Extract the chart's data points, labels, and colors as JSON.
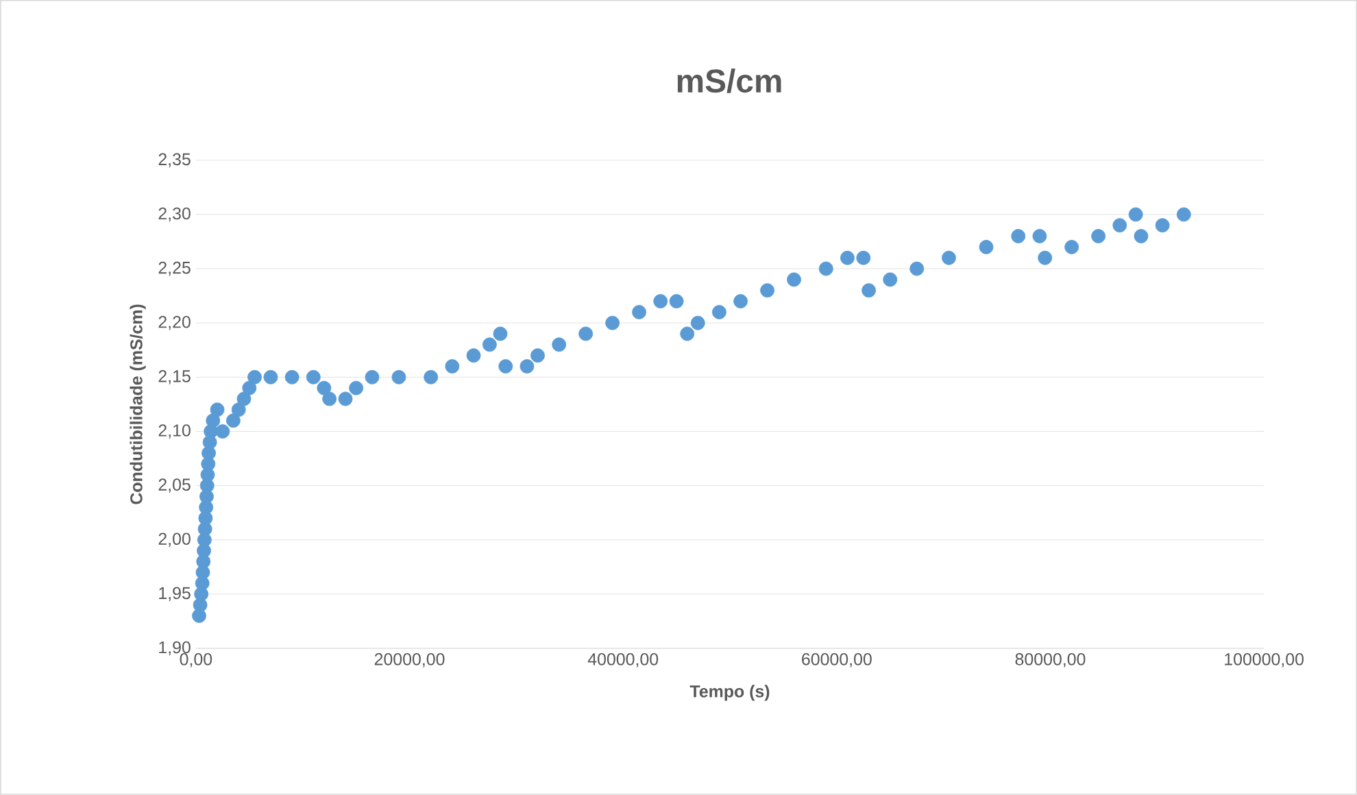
{
  "chart_data": {
    "type": "scatter",
    "title": "mS/cm",
    "xlabel": "Tempo (s)",
    "ylabel": "Condutibilidade (mS/cm)",
    "xlim": [
      0,
      100000
    ],
    "ylim": [
      1.9,
      2.35
    ],
    "xticks": [
      {
        "value": 0,
        "label": "0,00"
      },
      {
        "value": 20000,
        "label": "20000,00"
      },
      {
        "value": 40000,
        "label": "40000,00"
      },
      {
        "value": 60000,
        "label": "60000,00"
      },
      {
        "value": 80000,
        "label": "80000,00"
      },
      {
        "value": 100000,
        "label": "100000,00"
      }
    ],
    "yticks": [
      {
        "value": 1.9,
        "label": "1,90"
      },
      {
        "value": 1.95,
        "label": "1,95"
      },
      {
        "value": 2.0,
        "label": "2,00"
      },
      {
        "value": 2.05,
        "label": "2,05"
      },
      {
        "value": 2.1,
        "label": "2,10"
      },
      {
        "value": 2.15,
        "label": "2,15"
      },
      {
        "value": 2.2,
        "label": "2,20"
      },
      {
        "value": 2.25,
        "label": "2,25"
      },
      {
        "value": 2.3,
        "label": "2,30"
      },
      {
        "value": 2.35,
        "label": "2,35"
      }
    ],
    "grid": "y",
    "marker": "circle",
    "series": [
      {
        "color": "#5b9bd5",
        "x": [
          300,
          400,
          500,
          600,
          650,
          700,
          750,
          800,
          850,
          900,
          950,
          1000,
          1050,
          1100,
          1150,
          1200,
          1300,
          1400,
          1600,
          2000,
          2500,
          3500,
          4000,
          4500,
          5000,
          5500,
          7000,
          9000,
          11000,
          12000,
          12500,
          14000,
          15000,
          16500,
          19000,
          22000,
          24000,
          26000,
          27500,
          28500,
          29000,
          31000,
          32000,
          34000,
          36500,
          39000,
          41500,
          43500,
          45000,
          46000,
          47000,
          49000,
          51000,
          53500,
          56000,
          59000,
          61000,
          62500,
          63000,
          65000,
          67500,
          70500,
          74000,
          77000,
          79000,
          79500,
          82000,
          84500,
          86500,
          88000,
          88500,
          90500,
          92500
        ],
        "values": [
          1.93,
          1.94,
          1.95,
          1.96,
          1.97,
          1.98,
          1.99,
          2.0,
          2.01,
          2.02,
          2.03,
          2.04,
          2.05,
          2.06,
          2.07,
          2.08,
          2.09,
          2.1,
          2.11,
          2.12,
          2.1,
          2.11,
          2.12,
          2.13,
          2.14,
          2.15,
          2.15,
          2.15,
          2.15,
          2.14,
          2.13,
          2.13,
          2.14,
          2.15,
          2.15,
          2.15,
          2.16,
          2.17,
          2.18,
          2.19,
          2.16,
          2.16,
          2.17,
          2.18,
          2.19,
          2.2,
          2.21,
          2.22,
          2.22,
          2.19,
          2.2,
          2.21,
          2.22,
          2.23,
          2.24,
          2.25,
          2.26,
          2.26,
          2.23,
          2.24,
          2.25,
          2.26,
          2.27,
          2.28,
          2.28,
          2.26,
          2.27,
          2.28,
          2.29,
          2.3,
          2.28,
          2.29,
          2.3
        ]
      }
    ]
  }
}
